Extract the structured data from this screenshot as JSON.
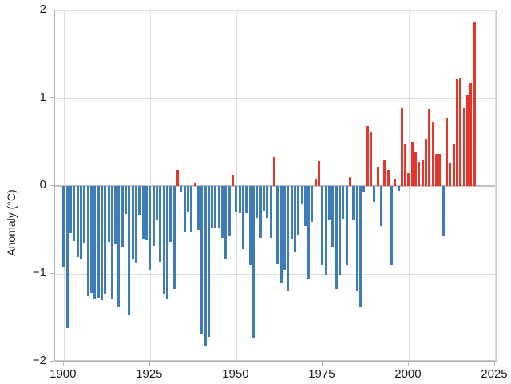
{
  "chart_data": {
    "type": "bar",
    "title": "",
    "xlabel": "",
    "ylabel": "Anomaly (°C)",
    "ylim": [
      -2,
      2
    ],
    "xlim": [
      1897.5,
      2025.7
    ],
    "grid": true,
    "legend": "none",
    "x_ticks": [
      1900,
      1925,
      1950,
      1975,
      2000,
      2025
    ],
    "y_ticks": [
      2,
      1,
      0,
      -1,
      -2
    ],
    "y_tick_labels": [
      "2",
      "1",
      "0",
      "−1",
      "−2"
    ],
    "positive_color": "#e5352b",
    "negative_color": "#3d7cb8",
    "years": [
      1900,
      1901,
      1902,
      1903,
      1904,
      1905,
      1906,
      1907,
      1908,
      1909,
      1910,
      1911,
      1912,
      1913,
      1914,
      1915,
      1916,
      1917,
      1918,
      1919,
      1920,
      1921,
      1922,
      1923,
      1924,
      1925,
      1926,
      1927,
      1928,
      1929,
      1930,
      1931,
      1932,
      1933,
      1934,
      1935,
      1936,
      1937,
      1938,
      1939,
      1940,
      1941,
      1942,
      1943,
      1944,
      1945,
      1946,
      1947,
      1948,
      1949,
      1950,
      1951,
      1952,
      1953,
      1954,
      1955,
      1956,
      1957,
      1958,
      1959,
      1960,
      1961,
      1962,
      1963,
      1964,
      1965,
      1966,
      1967,
      1968,
      1969,
      1970,
      1971,
      1972,
      1973,
      1974,
      1975,
      1976,
      1977,
      1978,
      1979,
      1980,
      1981,
      1982,
      1983,
      1984,
      1985,
      1986,
      1987,
      1988,
      1989,
      1990,
      1991,
      1992,
      1993,
      1994,
      1995,
      1996,
      1997,
      1998,
      1999,
      2000,
      2001,
      2002,
      2003,
      2004,
      2005,
      2006,
      2007,
      2008,
      2009,
      2010,
      2011,
      2012,
      2013,
      2014,
      2015,
      2016,
      2017,
      2018,
      2019
    ],
    "values": [
      -0.92,
      -1.62,
      -0.54,
      -0.63,
      -0.81,
      -0.84,
      -0.65,
      -1.25,
      -1.22,
      -1.28,
      -1.27,
      -1.3,
      -1.23,
      -0.64,
      -1.28,
      -0.66,
      -1.38,
      -0.7,
      -0.32,
      -1.47,
      -0.84,
      -0.87,
      -0.33,
      -0.6,
      -0.61,
      -0.95,
      -0.68,
      -0.39,
      -0.86,
      -1.23,
      -1.29,
      -0.64,
      -1.17,
      0.18,
      -0.06,
      -0.52,
      -0.29,
      -0.53,
      0.04,
      -0.5,
      -1.68,
      -1.83,
      -1.72,
      -0.47,
      -0.48,
      -0.47,
      -0.59,
      -0.84,
      -0.56,
      0.13,
      -0.3,
      -0.31,
      -0.72,
      -0.31,
      -0.9,
      -1.73,
      -0.36,
      -0.59,
      -0.28,
      -0.36,
      -0.59,
      0.33,
      -0.89,
      -1.11,
      -0.95,
      -1.2,
      -0.6,
      -0.75,
      -0.55,
      -0.2,
      -0.45,
      -1.05,
      -0.41,
      0.08,
      0.28,
      -0.9,
      -1.01,
      -0.39,
      -0.69,
      -1.17,
      -1.02,
      -0.37,
      -0.9,
      0.1,
      -0.39,
      -1.2,
      -1.38,
      -0.07,
      0.68,
      0.62,
      -0.18,
      0.22,
      -0.45,
      0.3,
      0.18,
      -0.9,
      0.08,
      -0.05,
      0.89,
      0.47,
      0.15,
      0.5,
      0.39,
      0.27,
      0.29,
      0.54,
      0.87,
      0.73,
      0.36,
      0.36,
      -0.57,
      0.77,
      0.26,
      0.47,
      1.22,
      1.23,
      0.89,
      1.04,
      1.17,
      1.86
    ]
  }
}
